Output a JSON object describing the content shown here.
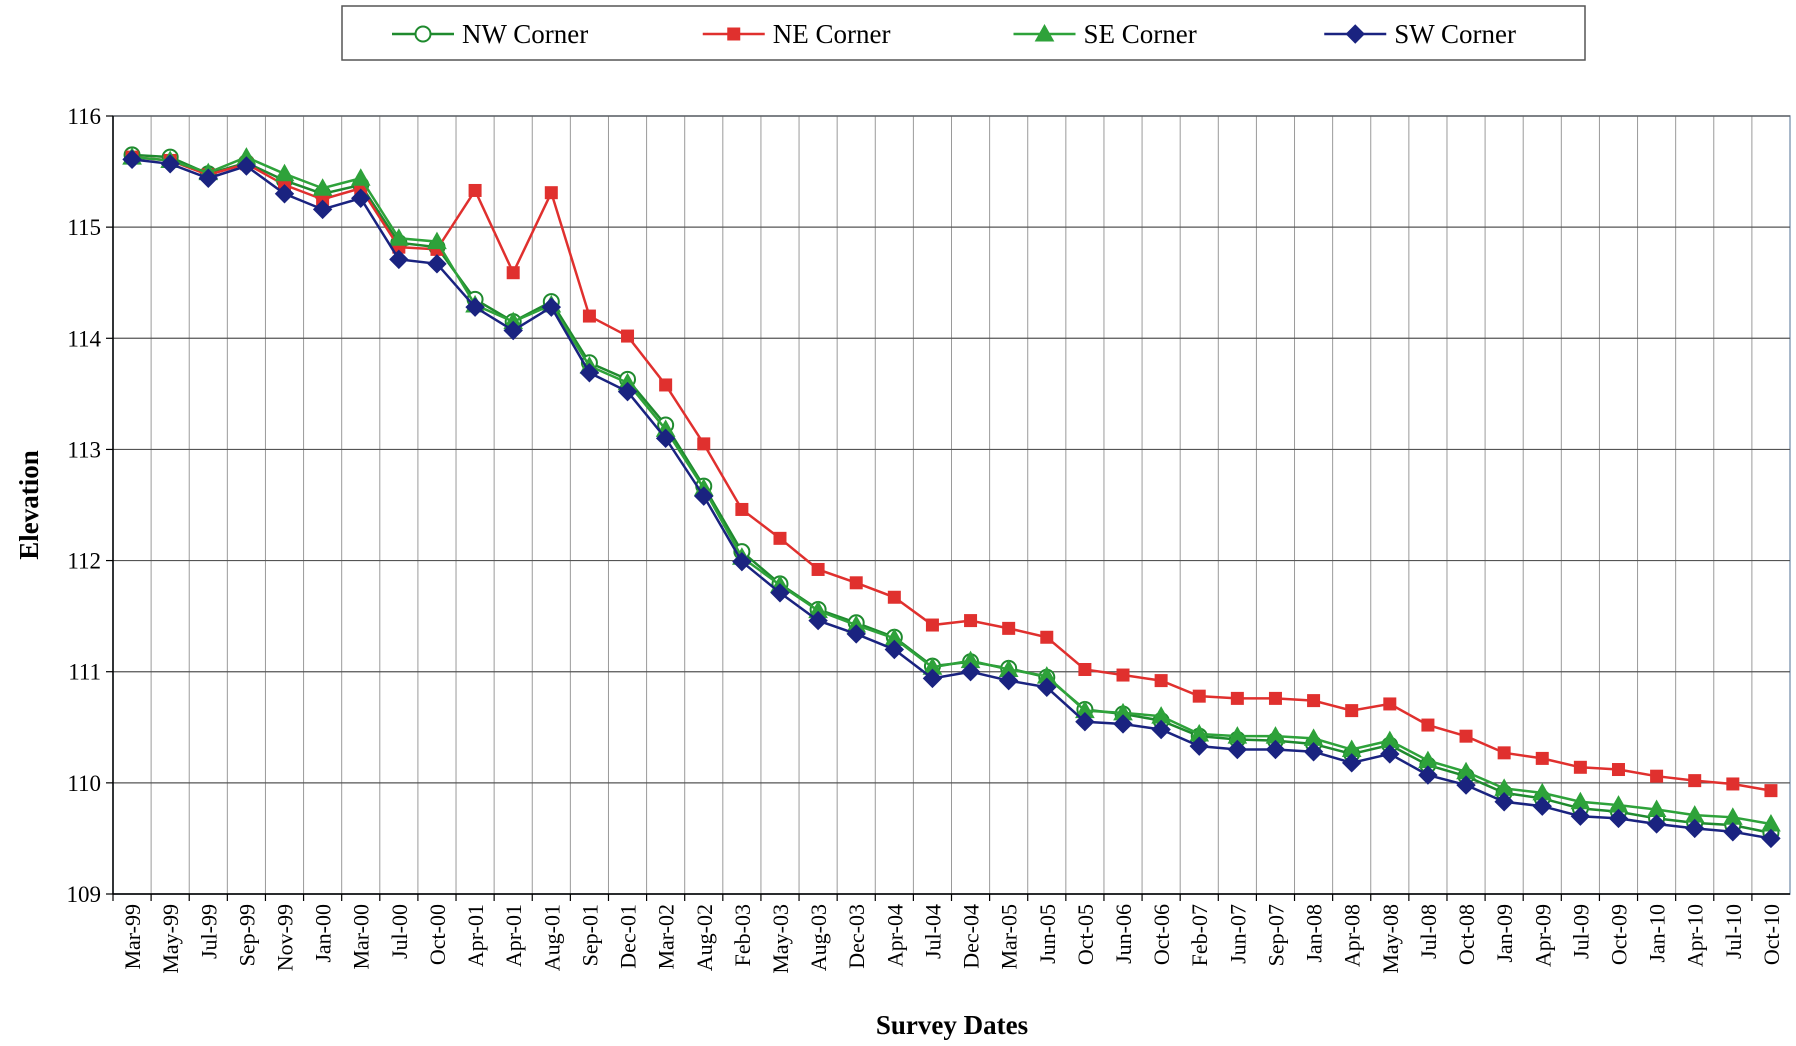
{
  "chart_data": {
    "type": "line",
    "x_label": "Survey Dates",
    "y_label": "Elevation",
    "categories": [
      "Mar-99",
      "May-99",
      "Jul-99",
      "Sep-99",
      "Nov-99",
      "Jan-00",
      "Mar-00",
      "Jul-00",
      "Oct-00",
      "Apr-01",
      "Apr-01",
      "Aug-01",
      "Sep-01",
      "Dec-01",
      "Mar-02",
      "Aug-02",
      "Feb-03",
      "May-03",
      "Aug-03",
      "Dec-03",
      "Apr-04",
      "Jul-04",
      "Dec-04",
      "Mar-05",
      "Jun-05",
      "Oct-05",
      "Jun-06",
      "Oct-06",
      "Feb-07",
      "Jun-07",
      "Sep-07",
      "Jan-08",
      "Apr-08",
      "May-08",
      "Jul-08",
      "Oct-08",
      "Jan-09",
      "Apr-09",
      "Jul-09",
      "Oct-09",
      "Jan-10",
      "Apr-10",
      "Jul-10",
      "Oct-10"
    ],
    "series": [
      {
        "name": "NW Corner",
        "color": "#1f8a2e",
        "marker": "circle",
        "values": [
          115.65,
          115.63,
          115.48,
          115.58,
          115.42,
          115.3,
          115.38,
          114.86,
          114.82,
          114.35,
          114.15,
          114.33,
          113.78,
          113.63,
          113.22,
          112.67,
          112.08,
          111.79,
          111.56,
          111.44,
          111.31,
          111.05,
          111.09,
          111.03,
          110.95,
          110.66,
          110.62,
          110.56,
          110.42,
          110.39,
          110.38,
          110.35,
          110.26,
          110.34,
          110.16,
          110.06,
          109.91,
          109.86,
          109.77,
          109.74,
          109.68,
          109.64,
          109.62,
          109.55
        ]
      },
      {
        "name": "NE Corner",
        "color": "#e0302e",
        "marker": "square",
        "values": [
          115.63,
          115.6,
          115.47,
          115.57,
          115.38,
          115.25,
          115.35,
          114.82,
          114.8,
          115.33,
          114.59,
          115.31,
          114.2,
          114.02,
          113.58,
          113.05,
          112.46,
          112.2,
          111.92,
          111.8,
          111.67,
          111.42,
          111.46,
          111.39,
          111.31,
          111.02,
          110.97,
          110.92,
          110.78,
          110.76,
          110.76,
          110.74,
          110.65,
          110.71,
          110.52,
          110.42,
          110.27,
          110.22,
          110.14,
          110.12,
          110.06,
          110.02,
          109.99,
          109.93
        ]
      },
      {
        "name": "SE Corner",
        "color": "#2ea23a",
        "marker": "triangle",
        "values": [
          115.63,
          115.6,
          115.49,
          115.63,
          115.48,
          115.35,
          115.44,
          114.9,
          114.87,
          114.3,
          114.15,
          114.3,
          113.75,
          113.6,
          113.18,
          112.65,
          112.03,
          111.78,
          111.55,
          111.42,
          111.3,
          111.04,
          111.1,
          111.02,
          110.96,
          110.65,
          110.63,
          110.6,
          110.44,
          110.42,
          110.42,
          110.4,
          110.3,
          110.38,
          110.2,
          110.1,
          109.95,
          109.91,
          109.83,
          109.8,
          109.76,
          109.71,
          109.69,
          109.63
        ]
      },
      {
        "name": "SW Corner",
        "color": "#1a2380",
        "marker": "diamond",
        "values": [
          115.61,
          115.57,
          115.44,
          115.55,
          115.3,
          115.16,
          115.26,
          114.71,
          114.67,
          114.28,
          114.07,
          114.28,
          113.69,
          113.52,
          113.1,
          112.58,
          111.99,
          111.71,
          111.46,
          111.34,
          111.2,
          110.94,
          111.0,
          110.92,
          110.86,
          110.55,
          110.53,
          110.48,
          110.33,
          110.3,
          110.3,
          110.28,
          110.18,
          110.26,
          110.07,
          109.98,
          109.83,
          109.79,
          109.7,
          109.68,
          109.63,
          109.59,
          109.56,
          109.5
        ]
      }
    ],
    "ylim": [
      109,
      116
    ],
    "yticks": [
      109,
      110,
      111,
      112,
      113,
      114,
      115,
      116
    ],
    "grid": true,
    "legend": "top"
  }
}
